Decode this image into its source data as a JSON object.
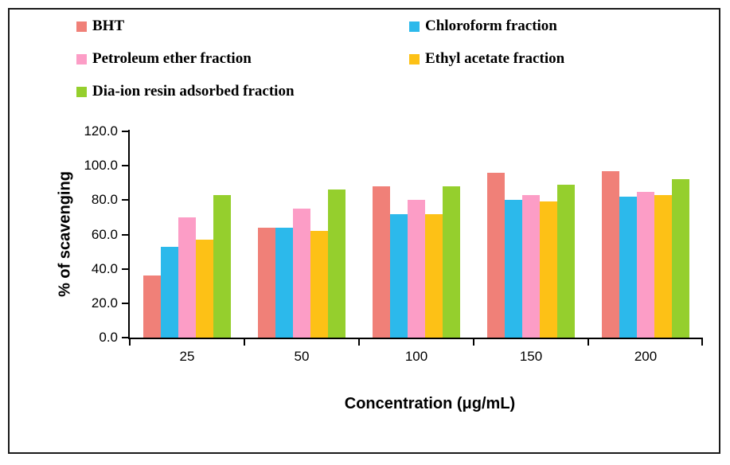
{
  "chart_data": {
    "type": "bar",
    "title": "",
    "xlabel": "Concentration (μg/mL)",
    "ylabel": "% of scavenging",
    "categories": [
      "25",
      "50",
      "100",
      "150",
      "200"
    ],
    "series": [
      {
        "name": "BHT",
        "key": "bht",
        "color": "#F08078",
        "values": [
          36,
          64,
          88,
          96,
          97
        ]
      },
      {
        "name": "Chloroform fraction",
        "key": "chloroform",
        "color": "#2CB9EB",
        "values": [
          53,
          64,
          72,
          80,
          82
        ]
      },
      {
        "name": "Petroleum ether fraction",
        "key": "petroleum-ether",
        "color": "#FC9DC6",
        "values": [
          70,
          75,
          80,
          83,
          85
        ]
      },
      {
        "name": "Ethyl acetate fraction",
        "key": "ethyl-acetate",
        "color": "#FDC116",
        "values": [
          57,
          62,
          72,
          79,
          83
        ]
      },
      {
        "name": "Dia-ion resin adsorbed fraction",
        "key": "dia-ion",
        "color": "#95CF2D",
        "values": [
          83,
          86,
          88,
          89,
          92
        ]
      }
    ],
    "y_ticks": [
      "0.0",
      "20.0",
      "40.0",
      "60.0",
      "80.0",
      "100.0",
      "120.0"
    ],
    "ylim": [
      0,
      120
    ],
    "grid": false,
    "legend_position": "top-left-two-columns",
    "axis_color": "#000000",
    "frame_border_color": "#1a1a1a"
  }
}
